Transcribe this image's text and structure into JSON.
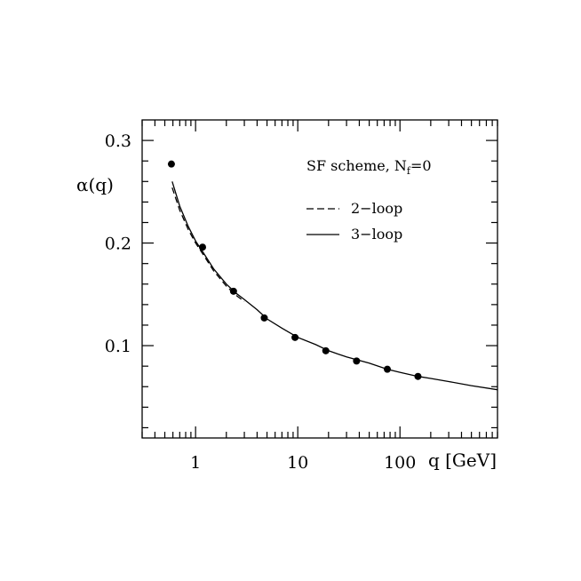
{
  "chart_data": {
    "type": "line",
    "title": "",
    "xlabel": "q [GeV]",
    "ylabel": "α(q)",
    "xscale": "log",
    "xlim": [
      0.3,
      900
    ],
    "ylim": [
      0.01,
      0.32
    ],
    "x_ticks": [
      1,
      10,
      100
    ],
    "x_tick_labels": [
      "1",
      "10",
      "100"
    ],
    "y_ticks": [
      0.1,
      0.2,
      0.3
    ],
    "y_tick_labels": [
      "0.1",
      "0.2",
      "0.3"
    ],
    "grid": false,
    "legend": {
      "placement": "top-right",
      "title_main": "SF scheme,  N",
      "title_sub": "f",
      "title_tail": "=0",
      "entries": [
        {
          "label": "2−loop",
          "style": "dashed"
        },
        {
          "label": "3−loop",
          "style": "solid"
        }
      ]
    },
    "points": {
      "x": [
        0.58,
        1.17,
        2.35,
        4.7,
        9.4,
        18.8,
        37.6,
        75.2,
        150
      ],
      "y": [
        0.277,
        0.196,
        0.153,
        0.127,
        0.108,
        0.095,
        0.085,
        0.077,
        0.07
      ]
    },
    "series": [
      {
        "style": "dashed",
        "x": [
          0.59,
          0.7,
          0.85,
          1.0,
          1.2,
          1.5,
          2.0,
          2.5,
          3.0
        ],
        "y": [
          0.254,
          0.232,
          0.213,
          0.2,
          0.188,
          0.173,
          0.158,
          0.149,
          0.143
        ]
      },
      {
        "style": "solid",
        "x": [
          0.59,
          0.7,
          0.85,
          1.0,
          1.2,
          1.5,
          2.0,
          2.5,
          3.0,
          4.0,
          5.0,
          7.0,
          10,
          15,
          20,
          30,
          50,
          75,
          100,
          150,
          200,
          300,
          500,
          900
        ],
        "y": [
          0.26,
          0.236,
          0.216,
          0.202,
          0.19,
          0.175,
          0.16,
          0.151,
          0.145,
          0.135,
          0.126,
          0.117,
          0.108,
          0.101,
          0.095,
          0.089,
          0.083,
          0.077,
          0.074,
          0.07,
          0.068,
          0.065,
          0.061,
          0.057
        ]
      }
    ]
  }
}
